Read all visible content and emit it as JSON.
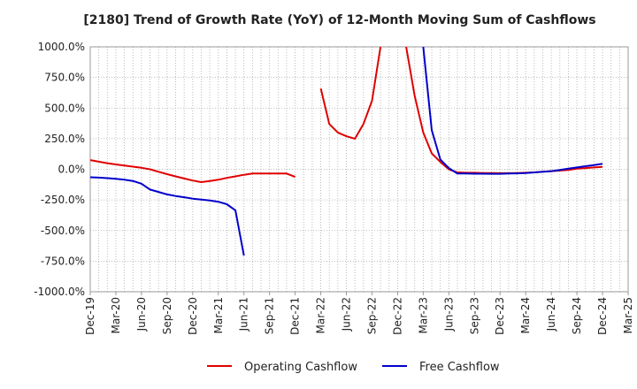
{
  "chart_data": {
    "type": "line",
    "title": "[2180]  Trend of Growth Rate (YoY) of 12-Month Moving Sum of Cashflows",
    "xlabel": "",
    "ylabel": "",
    "ylim": [
      -1000,
      1000
    ],
    "y_ticks": [
      1000,
      750,
      500,
      250,
      0,
      -250,
      -500,
      -750,
      -1000
    ],
    "y_tick_labels": [
      "1000.0%",
      "750.0%",
      "500.0%",
      "250.0%",
      "0.0%",
      "-250.0%",
      "-500.0%",
      "-750.0%",
      "-1000.0%"
    ],
    "x_start": "Dec-19",
    "x_ticks": [
      "Dec-19",
      "Mar-20",
      "Jun-20",
      "Sep-20",
      "Dec-20",
      "Mar-21",
      "Jun-21",
      "Sep-21",
      "Dec-21",
      "Mar-22",
      "Jun-22",
      "Sep-22",
      "Dec-22",
      "Mar-23",
      "Jun-23",
      "Sep-23",
      "Dec-23",
      "Mar-24",
      "Jun-24",
      "Sep-24",
      "Dec-24",
      "Mar-25"
    ],
    "grid": true,
    "legend_position": "bottom",
    "series": [
      {
        "name": "Operating Cashflow",
        "color": "#e00000",
        "segments": [
          [
            [
              "Dec-19",
              75
            ],
            [
              "Jan-20",
              62
            ],
            [
              "Feb-20",
              50
            ],
            [
              "Mar-20",
              40
            ],
            [
              "Apr-20",
              30
            ],
            [
              "May-20",
              22
            ],
            [
              "Jun-20",
              12
            ],
            [
              "Jul-20",
              0
            ],
            [
              "Aug-20",
              -20
            ],
            [
              "Sep-20",
              -40
            ],
            [
              "Oct-20",
              -58
            ],
            [
              "Nov-20",
              -75
            ],
            [
              "Dec-20",
              -92
            ],
            [
              "Jan-21",
              -105
            ],
            [
              "Feb-21",
              -95
            ],
            [
              "Mar-21",
              -85
            ],
            [
              "Apr-21",
              -70
            ],
            [
              "May-21",
              -58
            ],
            [
              "Jun-21",
              -45
            ],
            [
              "Jul-21",
              -35
            ],
            [
              "Aug-21",
              -35
            ],
            [
              "Sep-21",
              -35
            ],
            [
              "Oct-21",
              -35
            ],
            [
              "Nov-21",
              -35
            ],
            [
              "Dec-21",
              -62
            ]
          ],
          [
            [
              "Mar-22",
              660
            ],
            [
              "Apr-22",
              370
            ],
            [
              "May-22",
              300
            ],
            [
              "Jun-22",
              270
            ],
            [
              "Jul-22",
              250
            ],
            [
              "Aug-22",
              370
            ],
            [
              "Sep-22",
              560
            ],
            [
              "Oct-22",
              1000
            ]
          ],
          [
            [
              "Jan-23",
              1000
            ],
            [
              "Feb-23",
              600
            ],
            [
              "Mar-23",
              300
            ],
            [
              "Apr-23",
              130
            ],
            [
              "May-23",
              60
            ],
            [
              "Jun-23",
              0
            ],
            [
              "Jul-23",
              -25
            ],
            [
              "Aug-23",
              -28
            ],
            [
              "Sep-23",
              -28
            ],
            [
              "Oct-23",
              -30
            ],
            [
              "Nov-23",
              -30
            ],
            [
              "Dec-23",
              -32
            ],
            [
              "Jan-24",
              -32
            ],
            [
              "Feb-24",
              -30
            ],
            [
              "Mar-24",
              -28
            ],
            [
              "Apr-24",
              -25
            ],
            [
              "May-24",
              -20
            ],
            [
              "Jun-24",
              -15
            ],
            [
              "Jul-24",
              -10
            ],
            [
              "Aug-24",
              -5
            ],
            [
              "Sep-24",
              5
            ],
            [
              "Oct-24",
              10
            ],
            [
              "Nov-24",
              15
            ],
            [
              "Dec-24",
              20
            ]
          ]
        ]
      },
      {
        "name": "Free Cashflow",
        "color": "#0000cc",
        "segments": [
          [
            [
              "Dec-19",
              -65
            ],
            [
              "Jan-20",
              -68
            ],
            [
              "Feb-20",
              -72
            ],
            [
              "Mar-20",
              -78
            ],
            [
              "Apr-20",
              -85
            ],
            [
              "May-20",
              -95
            ],
            [
              "Jun-20",
              -118
            ],
            [
              "Jul-20",
              -165
            ],
            [
              "Aug-20",
              -185
            ],
            [
              "Sep-20",
              -205
            ],
            [
              "Oct-20",
              -218
            ],
            [
              "Nov-20",
              -228
            ],
            [
              "Dec-20",
              -240
            ],
            [
              "Jan-21",
              -248
            ],
            [
              "Feb-21",
              -255
            ],
            [
              "Mar-21",
              -265
            ],
            [
              "Apr-21",
              -285
            ],
            [
              "May-21",
              -335
            ],
            [
              "Jun-21",
              -705
            ]
          ],
          [
            [
              "Mar-23",
              1000
            ],
            [
              "Apr-23",
              320
            ],
            [
              "May-23",
              80
            ],
            [
              "Jun-23",
              10
            ],
            [
              "Jul-23",
              -35
            ],
            [
              "Aug-23",
              -35
            ],
            [
              "Sep-23",
              -36
            ],
            [
              "Oct-23",
              -36
            ],
            [
              "Nov-23",
              -37
            ],
            [
              "Dec-23",
              -37
            ],
            [
              "Jan-24",
              -35
            ],
            [
              "Feb-24",
              -33
            ],
            [
              "Mar-24",
              -30
            ],
            [
              "Apr-24",
              -25
            ],
            [
              "May-24",
              -20
            ],
            [
              "Jun-24",
              -15
            ],
            [
              "Jul-24",
              -5
            ],
            [
              "Aug-24",
              5
            ],
            [
              "Sep-24",
              15
            ],
            [
              "Oct-24",
              25
            ],
            [
              "Nov-24",
              35
            ],
            [
              "Dec-24",
              45
            ]
          ]
        ]
      }
    ]
  }
}
